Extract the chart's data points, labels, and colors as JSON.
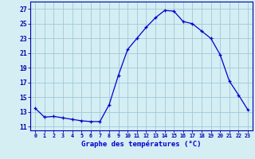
{
  "hours": [
    0,
    1,
    2,
    3,
    4,
    5,
    6,
    7,
    8,
    9,
    10,
    11,
    12,
    13,
    14,
    15,
    16,
    17,
    18,
    19,
    20,
    21,
    22,
    23
  ],
  "temps": [
    13.5,
    12.3,
    12.4,
    12.2,
    12.0,
    11.8,
    11.7,
    11.7,
    14.0,
    18.0,
    21.5,
    23.0,
    24.5,
    25.8,
    26.8,
    26.7,
    25.3,
    25.0,
    24.0,
    23.0,
    20.8,
    17.2,
    15.3,
    13.3
  ],
  "line_color": "#0000cc",
  "marker": "+",
  "marker_size": 3,
  "bg_color": "#d4eef4",
  "grid_color": "#a0c8d8",
  "ylabel_ticks": [
    11,
    13,
    15,
    17,
    19,
    21,
    23,
    25,
    27
  ],
  "ylim": [
    10.5,
    28.0
  ],
  "xlim": [
    -0.5,
    23.5
  ],
  "xlabel": "Graphe des températures (°C)",
  "xlabel_color": "#0000cc",
  "tick_label_color": "#0000cc",
  "axis_color": "#0000aa",
  "xtick_fontsize": 4.8,
  "ytick_fontsize": 5.8,
  "xlabel_fontsize": 6.5
}
